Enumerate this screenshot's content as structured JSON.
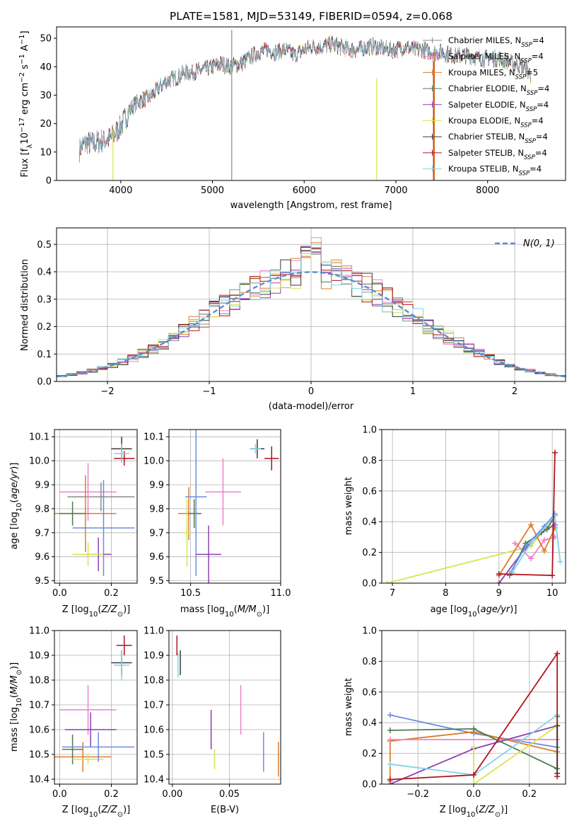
{
  "title": "PLATE=1581, MJD=53149, FIBERID=0594, z=0.068",
  "colors": [
    "#8c8c8c",
    "#ee82c8",
    "#e07b2a",
    "#4f7a50",
    "#8e3fb3",
    "#d6e64f",
    "#3b3b3b",
    "#b0141b",
    "#86d2e6"
  ],
  "chart_data": [
    {
      "id": "spectrum",
      "type": "line",
      "title": "PLATE=1581, MJD=53149, FIBERID=0594, z=0.068",
      "xlabel": "wavelength [Angstrom, rest frame]",
      "ylabel": "Flux [f_λ 10^-17 erg cm^-2 s^-1 A^-1]",
      "xlim": [
        3300,
        8850
      ],
      "ylim": [
        0,
        54
      ],
      "xticks": [
        4000,
        5000,
        6000,
        7000,
        8000
      ],
      "yticks": [
        0,
        10,
        20,
        30,
        40,
        50
      ],
      "grid": false,
      "legend": "right",
      "x": [
        3550,
        3600,
        3700,
        3800,
        3900,
        4000,
        4100,
        4200,
        4300,
        4400,
        4500,
        4600,
        4700,
        4800,
        4900,
        5000,
        5100,
        5200,
        5300,
        5400,
        5500,
        5600,
        5700,
        5800,
        5900,
        6000,
        6100,
        6200,
        6300,
        6400,
        6500,
        6600,
        6700,
        6800,
        6900,
        7000,
        7100,
        7200,
        7300,
        7400,
        7500,
        7600,
        7700,
        7800,
        7900,
        8000,
        8100,
        8200,
        8300,
        8400,
        8470
      ],
      "y": [
        11,
        13,
        13,
        14,
        15,
        19,
        25,
        28,
        29,
        32,
        35,
        36,
        38,
        38,
        39,
        40,
        41,
        40,
        41,
        43,
        45,
        46,
        45,
        46,
        44,
        46,
        47,
        47,
        48,
        47,
        46,
        46,
        47,
        47,
        46,
        46,
        47,
        46,
        46,
        45,
        45,
        44,
        44,
        44,
        43,
        43,
        43,
        42,
        41,
        40,
        37
      ],
      "series_names": [
        "Chabrier MILES, N_SSP=4",
        "Salpeter MILES, N_SSP=4",
        "Kroupa MILES, N_SSP=5",
        "Chabrier ELODIE, N_SSP=4",
        "Salpeter ELODIE, N_SSP=4",
        "Kroupa ELODIE, N_SSP=4",
        "Chabrier STELIB, N_SSP=4",
        "Salpeter STELIB, N_SSP=4",
        "Kroupa STELIB, N_SSP=4"
      ]
    },
    {
      "id": "residuals",
      "type": "histogram",
      "xlabel": "(data-model)/error",
      "ylabel": "Normed distribution",
      "xlim": [
        -2.5,
        2.5
      ],
      "ylim": [
        0,
        0.56
      ],
      "xticks": [
        -2,
        -1,
        0,
        1,
        2
      ],
      "yticks": [
        0.0,
        0.1,
        0.2,
        0.3,
        0.4,
        0.5
      ],
      "grid": true,
      "legend": "top-right",
      "legend_label": "N(0, 1)",
      "bin_width": 0.1,
      "reference_curve": "normal(0,1)"
    },
    {
      "id": "age_vs_Z",
      "type": "errorbar",
      "xlabel": "Z [log10(Z/Z⊙)]",
      "ylabel": "age [log10(age/yr)]",
      "xlim": [
        -0.02,
        0.3
      ],
      "ylim": [
        9.49,
        10.13
      ],
      "xticks": [
        0.0,
        0.2
      ],
      "yticks": [
        9.5,
        9.6,
        9.7,
        9.8,
        9.9,
        10.0,
        10.1
      ],
      "grid": true,
      "points": [
        {
          "series": 0,
          "x": 0.16,
          "y": 9.85,
          "xerr": 0.13,
          "yerr": 0.06
        },
        {
          "series": 1,
          "x": 0.11,
          "y": 9.87,
          "xerr": 0.11,
          "yerr": 0.12
        },
        {
          "series": 2,
          "x": 0.1,
          "y": 9.78,
          "xerr": 0.12,
          "yerr": 0.16
        },
        {
          "series": 3,
          "x": 0.05,
          "y": 9.78,
          "xerr": 0.05,
          "yerr": 0.05
        },
        {
          "series": 4,
          "x": 0.15,
          "y": 9.61,
          "xerr": 0.05,
          "yerr": 0.07
        },
        {
          "series": 5,
          "x": 0.11,
          "y": 9.61,
          "xerr": 0.06,
          "yerr": 0.05
        },
        {
          "series": 6,
          "x": 0.24,
          "y": 10.05,
          "xerr": 0.04,
          "yerr": 0.05
        },
        {
          "series": 7,
          "x": 0.25,
          "y": 10.01,
          "xerr": 0.04,
          "yerr": 0.03
        },
        {
          "series": 8,
          "x": 0.24,
          "y": 10.03,
          "xerr": 0.03,
          "yerr": 0.04
        }
      ],
      "extra_points": [
        {
          "color": "#6b8de3",
          "x": 0.17,
          "y": 9.72,
          "xerr": 0.12,
          "yerr": 0.2
        }
      ]
    },
    {
      "id": "age_vs_mass",
      "type": "errorbar",
      "xlabel": "mass [log10(M/M⊙)]",
      "ylabel": "",
      "xlim": [
        10.38,
        11.0
      ],
      "ylim": [
        9.49,
        10.13
      ],
      "xticks": [
        10.5,
        11.0
      ],
      "yticks": [
        9.5,
        9.6,
        9.7,
        9.8,
        9.9,
        10.0,
        10.1
      ],
      "grid": true,
      "points": [
        {
          "series": 1,
          "x": 10.68,
          "y": 9.87,
          "xerr": 0.1,
          "yerr": 0.14
        },
        {
          "series": 2,
          "x": 10.49,
          "y": 9.78,
          "xerr": 0.06,
          "yerr": 0.11
        },
        {
          "series": 3,
          "x": 10.52,
          "y": 9.78,
          "xerr": 0.04,
          "yerr": 0.06
        },
        {
          "series": 4,
          "x": 10.6,
          "y": 9.61,
          "xerr": 0.07,
          "yerr": 0.12
        },
        {
          "series": 5,
          "x": 10.48,
          "y": 9.7,
          "xerr": 0.02,
          "yerr": 0.14
        },
        {
          "series": 6,
          "x": 10.87,
          "y": 10.05,
          "xerr": 0.04,
          "yerr": 0.04
        },
        {
          "series": 7,
          "x": 10.95,
          "y": 10.01,
          "xerr": 0.04,
          "yerr": 0.05
        },
        {
          "series": 8,
          "x": 10.86,
          "y": 10.05,
          "xerr": 0.03,
          "yerr": 0.02
        }
      ],
      "extra_points": [
        {
          "color": "#6b8de3",
          "x": 10.53,
          "y": 9.85,
          "xerr": 0.06,
          "yerr": 0.33
        }
      ]
    },
    {
      "id": "weight_vs_age",
      "type": "line",
      "xlabel": "age  [log10(age/yr)]",
      "ylabel": "mass weight",
      "xlim": [
        6.8,
        10.25
      ],
      "ylim": [
        0,
        1
      ],
      "xticks": [
        7,
        8,
        9,
        10
      ],
      "yticks": [
        0.0,
        0.2,
        0.4,
        0.6,
        0.8,
        1.0
      ],
      "grid": true,
      "series": [
        {
          "color": "#d6e64f",
          "x": [
            6.9,
            9.6,
            9.9,
            10.05
          ],
          "y": [
            0.0,
            0.24,
            0.37,
            0.38
          ]
        },
        {
          "color": "#ee82c8",
          "x": [
            9.3,
            9.6,
            9.85,
            10.05
          ],
          "y": [
            0.26,
            0.16,
            0.28,
            0.3
          ]
        },
        {
          "color": "#e07b2a",
          "x": [
            9.0,
            9.6,
            9.85,
            10.05
          ],
          "y": [
            0.05,
            0.38,
            0.21,
            0.36
          ]
        },
        {
          "color": "#8e3fb3",
          "x": [
            9.0,
            9.5,
            9.8,
            10.05
          ],
          "y": [
            0.0,
            0.23,
            0.33,
            0.38
          ]
        },
        {
          "color": "#4f7a50",
          "x": [
            9.2,
            9.5,
            9.9,
            10.05
          ],
          "y": [
            0.05,
            0.26,
            0.35,
            0.44
          ]
        },
        {
          "color": "#6b8de3",
          "x": [
            9.2,
            9.5,
            9.85,
            10.05
          ],
          "y": [
            0.06,
            0.24,
            0.37,
            0.45
          ]
        },
        {
          "color": "#86d2e6",
          "x": [
            9.25,
            9.6,
            10.05,
            10.15
          ],
          "y": [
            0.07,
            0.26,
            0.44,
            0.14
          ]
        },
        {
          "color": "#b0141b",
          "x": [
            9.0,
            10.0,
            10.05
          ],
          "y": [
            0.06,
            0.05,
            0.85
          ]
        }
      ]
    },
    {
      "id": "mass_vs_Z",
      "type": "errorbar",
      "xlabel": "Z [log10(Z/Z⊙)]",
      "ylabel": "mass [log10(M/M⊙)]",
      "xlim": [
        -0.02,
        0.3
      ],
      "ylim": [
        10.38,
        11.0
      ],
      "xticks": [
        0.0,
        0.2
      ],
      "yticks": [
        10.4,
        10.5,
        10.6,
        10.7,
        10.8,
        10.9,
        11.0
      ],
      "grid": true,
      "points": [
        {
          "series": 1,
          "x": 0.11,
          "y": 10.68,
          "xerr": 0.11,
          "yerr": 0.1
        },
        {
          "series": 2,
          "x": 0.09,
          "y": 10.49,
          "xerr": 0.11,
          "yerr": 0.06
        },
        {
          "series": 3,
          "x": 0.05,
          "y": 10.52,
          "xerr": 0.04,
          "yerr": 0.06
        },
        {
          "series": 4,
          "x": 0.12,
          "y": 10.6,
          "xerr": 0.1,
          "yerr": 0.07
        },
        {
          "series": 5,
          "x": 0.11,
          "y": 10.48,
          "xerr": 0.06,
          "yerr": 0.02
        },
        {
          "series": 6,
          "x": 0.24,
          "y": 10.87,
          "xerr": 0.04,
          "yerr": 0.05
        },
        {
          "series": 7,
          "x": 0.25,
          "y": 10.94,
          "xerr": 0.03,
          "yerr": 0.04
        },
        {
          "series": 8,
          "x": 0.24,
          "y": 10.86,
          "xerr": 0.03,
          "yerr": 0.06
        }
      ],
      "extra_points": [
        {
          "color": "#6b8de3",
          "x": 0.15,
          "y": 10.53,
          "xerr": 0.14,
          "yerr": 0.06
        }
      ]
    },
    {
      "id": "mass_vs_ebv",
      "type": "errorbar",
      "xlabel": "E(B-V)",
      "ylabel": "",
      "xlim": [
        -0.003,
        0.095
      ],
      "ylim": [
        10.38,
        11.0
      ],
      "xticks": [
        0.0,
        0.05
      ],
      "yticks": [
        10.4,
        10.5,
        10.6,
        10.7,
        10.8,
        10.9,
        11.0
      ],
      "grid": true,
      "points": [
        {
          "series": 1,
          "x": 0.06,
          "y": 10.68,
          "xerr": 0,
          "yerr": 0.1
        },
        {
          "series": 2,
          "x": 0.093,
          "y": 10.48,
          "xerr": 0,
          "yerr": 0.07
        },
        {
          "series": 4,
          "x": 0.034,
          "y": 10.6,
          "xerr": 0,
          "yerr": 0.08
        },
        {
          "series": 5,
          "x": 0.037,
          "y": 10.48,
          "xerr": 0,
          "yerr": 0.04
        },
        {
          "series": 6,
          "x": 0.007,
          "y": 10.87,
          "xerr": 0,
          "yerr": 0.05
        },
        {
          "series": 7,
          "x": 0.004,
          "y": 10.94,
          "xerr": 0,
          "yerr": 0.04
        },
        {
          "series": 8,
          "x": 0.005,
          "y": 10.86,
          "xerr": 0,
          "yerr": 0.05
        }
      ],
      "extra_points": [
        {
          "color": "#6b8de3",
          "x": 0.08,
          "y": 10.51,
          "xerr": 0,
          "yerr": 0.08
        }
      ]
    },
    {
      "id": "weight_vs_Z",
      "type": "line",
      "xlabel": "Z [log10(Z/Z⊙)]",
      "ylabel": "mass weight",
      "xlim": [
        -0.33,
        0.33
      ],
      "ylim": [
        0,
        1
      ],
      "xticks": [
        -0.2,
        0.0,
        0.2
      ],
      "yticks": [
        0.0,
        0.2,
        0.4,
        0.6,
        0.8,
        1.0
      ],
      "grid": true,
      "series": [
        {
          "color": "#6b8de3",
          "x": [
            -0.3,
            0.0,
            0.3
          ],
          "y": [
            0.45,
            0.33,
            0.24
          ]
        },
        {
          "color": "#e07b2a",
          "x": [
            -0.3,
            -0.3,
            0.0,
            0.3
          ],
          "y": [
            0.02,
            0.28,
            0.34,
            0.21
          ]
        },
        {
          "color": "#ee82c8",
          "x": [
            -0.3,
            0.3
          ],
          "y": [
            0.29,
            0.29
          ]
        },
        {
          "color": "#4f7a50",
          "x": [
            -0.3,
            0.0,
            0.3,
            0.3
          ],
          "y": [
            0.35,
            0.36,
            0.1,
            0.44
          ]
        },
        {
          "color": "#8e3fb3",
          "x": [
            -0.3,
            0.0,
            0.3
          ],
          "y": [
            0.0,
            0.23,
            0.38
          ]
        },
        {
          "color": "#d6e64f",
          "x": [
            0.0,
            0.0,
            0.3
          ],
          "y": [
            0.24,
            0.0,
            0.38
          ]
        },
        {
          "color": "#86d2e6",
          "x": [
            -0.3,
            0.0,
            0.3
          ],
          "y": [
            0.13,
            0.06,
            0.45
          ]
        },
        {
          "color": "#b0141b",
          "x": [
            -0.3,
            0.0,
            0.3,
            0.3
          ],
          "y": [
            0.03,
            0.06,
            0.85,
            0.05
          ]
        },
        {
          "color": "#3b3b3b",
          "x": [
            0.3,
            0.3
          ],
          "y": [
            0.07,
            0.38
          ]
        }
      ]
    }
  ]
}
